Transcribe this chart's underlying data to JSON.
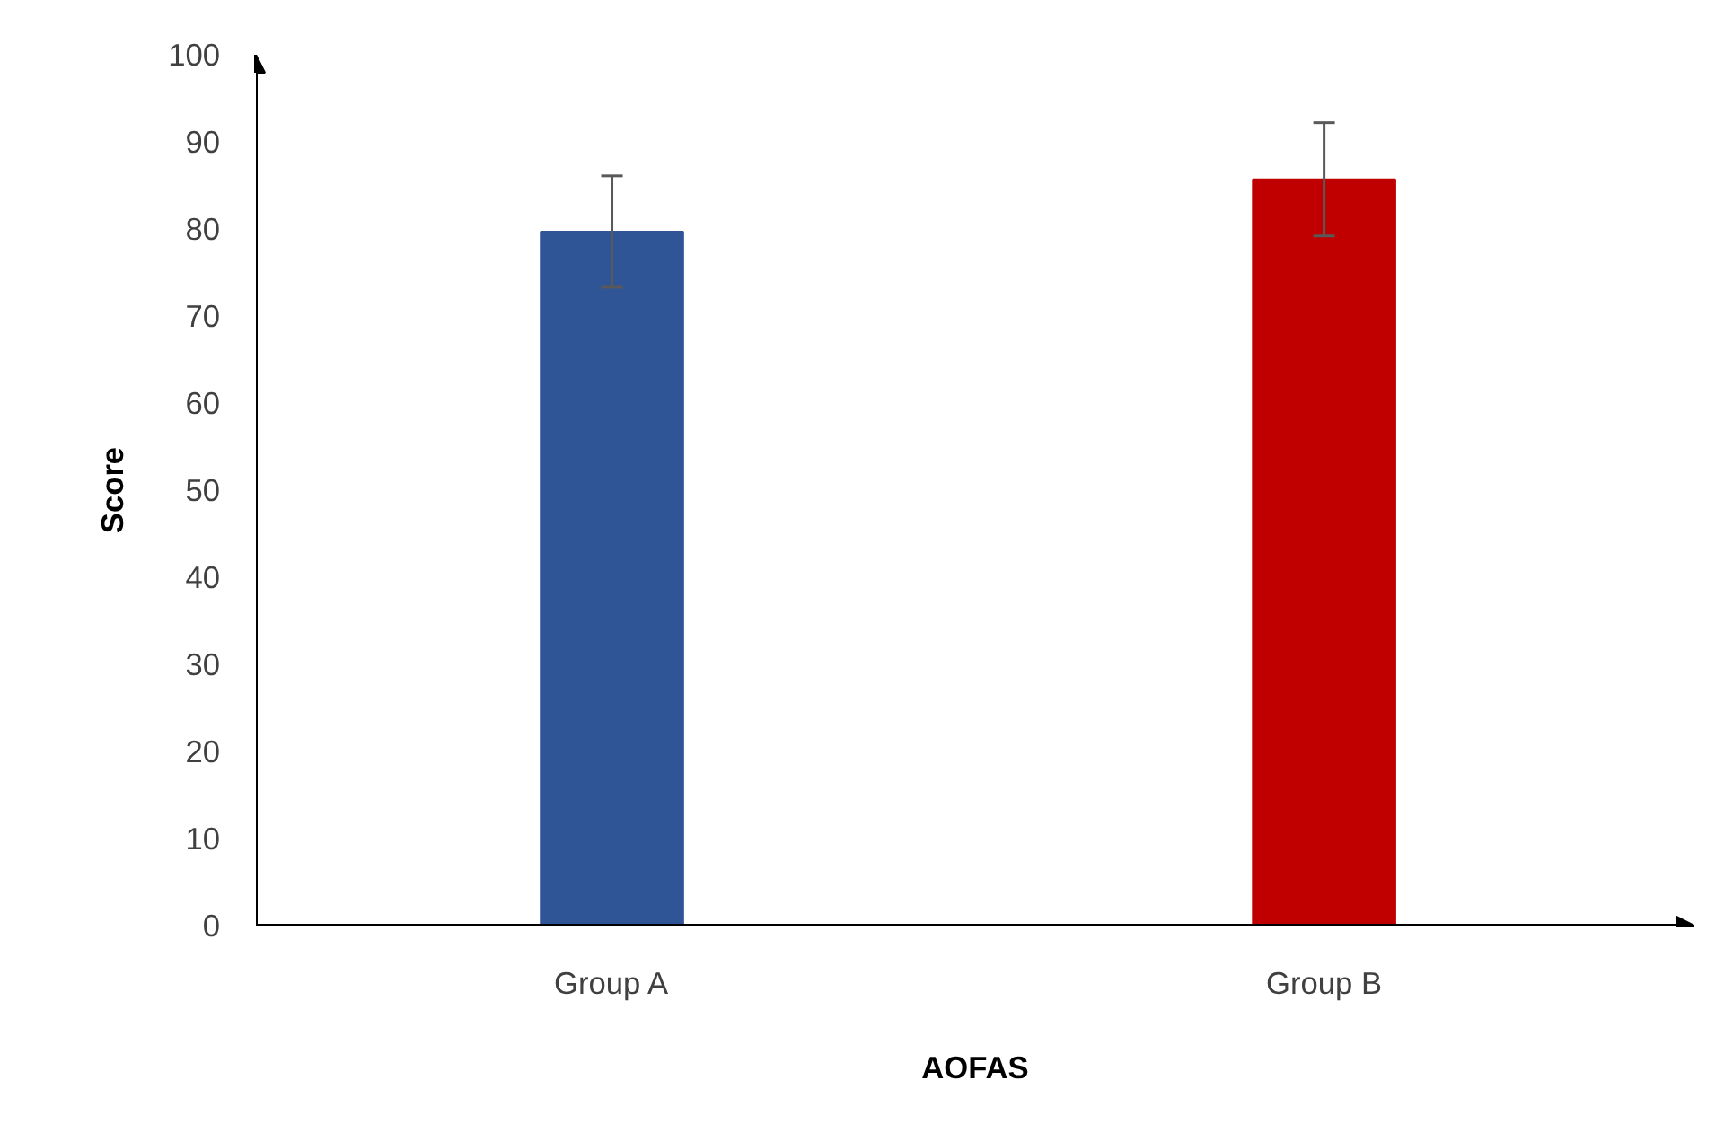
{
  "chart_data": {
    "type": "bar",
    "xlabel": "AOFAS",
    "ylabel": "Score",
    "categories": [
      "Group A",
      "Group B"
    ],
    "values": [
      79.7,
      85.7
    ],
    "colors": [
      "#2f5597",
      "#c00000"
    ],
    "errors": [
      6.4,
      6.5
    ],
    "ylim": [
      0,
      100
    ],
    "yticks": [
      0,
      10,
      20,
      30,
      40,
      50,
      60,
      70,
      80,
      90,
      100
    ],
    "grid": false
  }
}
